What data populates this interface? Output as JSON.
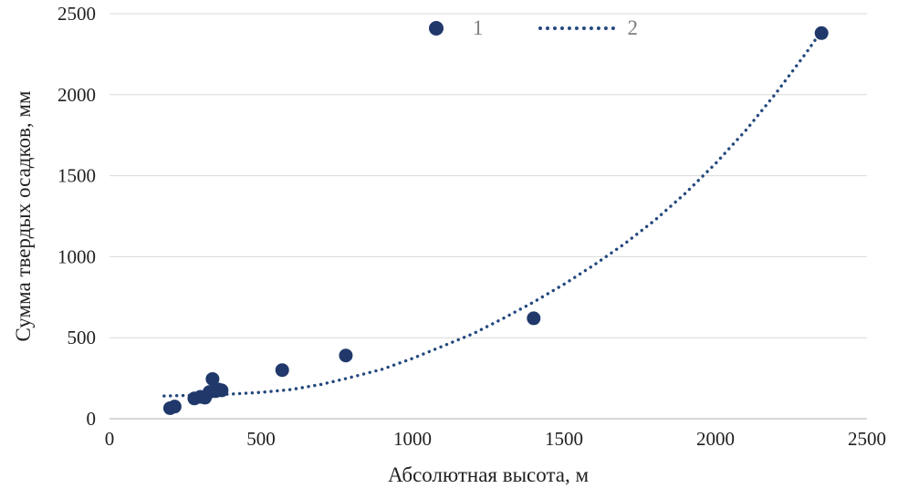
{
  "chart_data": {
    "type": "scatter",
    "title": "",
    "xlabel": "Абсолютная высота, м",
    "ylabel": "Сумма твердых осадков, мм",
    "xlim": [
      0,
      2500
    ],
    "ylim": [
      0,
      2500
    ],
    "xticks": [
      0,
      500,
      1000,
      1500,
      2000,
      2500
    ],
    "yticks": [
      0,
      500,
      1000,
      1500,
      2000,
      2500
    ],
    "grid": "horizontal",
    "colors": {
      "marker": "#20386a",
      "trend": "#24497e",
      "gridline": "#d9d9d9",
      "axis": "#bfbfbf",
      "tick_text": "#1f1f1f",
      "legend_text": "#7f7f7f"
    },
    "legend": [
      {
        "label": "1",
        "type": "marker"
      },
      {
        "label": "2",
        "type": "dotted-line"
      }
    ],
    "series": [
      {
        "name": "1",
        "kind": "scatter",
        "points": [
          [
            200,
            65
          ],
          [
            215,
            75
          ],
          [
            280,
            125
          ],
          [
            300,
            135
          ],
          [
            315,
            130
          ],
          [
            330,
            165
          ],
          [
            340,
            245
          ],
          [
            350,
            170
          ],
          [
            360,
            180
          ],
          [
            370,
            175
          ],
          [
            570,
            300
          ],
          [
            780,
            390
          ],
          [
            1400,
            620
          ],
          [
            2350,
            2380
          ]
        ]
      },
      {
        "name": "2",
        "kind": "trend",
        "points": [
          [
            180,
            140
          ],
          [
            300,
            146
          ],
          [
            400,
            152
          ],
          [
            500,
            163
          ],
          [
            600,
            180
          ],
          [
            700,
            212
          ],
          [
            780,
            248
          ],
          [
            900,
            305
          ],
          [
            1000,
            372
          ],
          [
            1100,
            448
          ],
          [
            1200,
            525
          ],
          [
            1300,
            620
          ],
          [
            1400,
            720
          ],
          [
            1500,
            830
          ],
          [
            1600,
            950
          ],
          [
            1700,
            1080
          ],
          [
            1800,
            1225
          ],
          [
            1900,
            1390
          ],
          [
            2000,
            1575
          ],
          [
            2100,
            1780
          ],
          [
            2200,
            2010
          ],
          [
            2300,
            2260
          ],
          [
            2360,
            2420
          ]
        ]
      }
    ]
  }
}
